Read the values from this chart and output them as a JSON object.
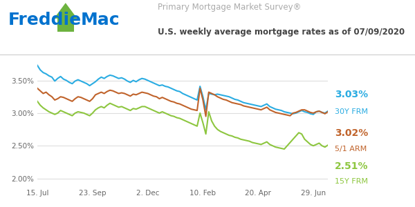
{
  "title_line1": "Primary Mortgage Market Survey®",
  "title_line2": "U.S. weekly average mortgage rates as of 07/09/2020",
  "freddie_blue": "#0072CE",
  "freddie_green": "#6DB33F",
  "bg_color": "#FFFFFF",
  "line_30y_color": "#2AACE2",
  "line_arm_color": "#C0632B",
  "line_15y_color": "#8DC63F",
  "grid_color": "#DDDDDD",
  "yticks": [
    2.0,
    2.5,
    3.0,
    3.5
  ],
  "ytick_labels": [
    "2.00%",
    "2.50%",
    "3.00%",
    "3.50%"
  ],
  "ylim": [
    1.88,
    3.78
  ],
  "xtick_labels": [
    "15. Jul",
    "23. Sep",
    "2. Dec",
    "10. Feb",
    "20. Apr",
    "29. Jun"
  ],
  "xtick_positions": [
    0,
    19,
    38,
    57,
    76,
    95
  ],
  "x": [
    0,
    1,
    2,
    3,
    4,
    5,
    6,
    7,
    8,
    9,
    10,
    11,
    12,
    13,
    14,
    15,
    16,
    17,
    18,
    19,
    20,
    21,
    22,
    23,
    24,
    25,
    26,
    27,
    28,
    29,
    30,
    31,
    32,
    33,
    34,
    35,
    36,
    37,
    38,
    39,
    40,
    41,
    42,
    43,
    44,
    45,
    46,
    47,
    48,
    49,
    50,
    51,
    52,
    53,
    54,
    55,
    56,
    57,
    58,
    59,
    60,
    61,
    62,
    63,
    64,
    65,
    66,
    67,
    68,
    69,
    70,
    71,
    72,
    73,
    74,
    75,
    76,
    77,
    78,
    79,
    80,
    81,
    82,
    83,
    84,
    85,
    86,
    87,
    88,
    89,
    90,
    91,
    92,
    93,
    94,
    95,
    96,
    97,
    98,
    99,
    100
  ],
  "y_30y": [
    3.73,
    3.66,
    3.62,
    3.6,
    3.57,
    3.55,
    3.49,
    3.53,
    3.56,
    3.52,
    3.5,
    3.47,
    3.45,
    3.49,
    3.51,
    3.49,
    3.47,
    3.45,
    3.42,
    3.45,
    3.48,
    3.52,
    3.55,
    3.53,
    3.56,
    3.58,
    3.57,
    3.55,
    3.53,
    3.54,
    3.52,
    3.49,
    3.47,
    3.5,
    3.48,
    3.51,
    3.53,
    3.52,
    3.5,
    3.48,
    3.46,
    3.44,
    3.42,
    3.43,
    3.41,
    3.4,
    3.38,
    3.36,
    3.34,
    3.33,
    3.3,
    3.28,
    3.26,
    3.24,
    3.22,
    3.2,
    3.41,
    3.25,
    3.05,
    3.3,
    3.29,
    3.28,
    3.29,
    3.28,
    3.27,
    3.26,
    3.25,
    3.23,
    3.21,
    3.2,
    3.18,
    3.16,
    3.15,
    3.14,
    3.13,
    3.12,
    3.11,
    3.1,
    3.12,
    3.14,
    3.1,
    3.08,
    3.06,
    3.05,
    3.04,
    3.02,
    3.01,
    3.0,
    2.99,
    3.0,
    3.02,
    3.04,
    3.02,
    3.01,
    2.99,
    2.98,
    3.02,
    3.03,
    3.01,
    3.0,
    3.03
  ],
  "y_arm": [
    3.38,
    3.34,
    3.3,
    3.32,
    3.28,
    3.25,
    3.2,
    3.22,
    3.25,
    3.24,
    3.22,
    3.2,
    3.18,
    3.22,
    3.25,
    3.24,
    3.22,
    3.2,
    3.18,
    3.22,
    3.28,
    3.3,
    3.32,
    3.3,
    3.33,
    3.35,
    3.34,
    3.32,
    3.3,
    3.31,
    3.3,
    3.28,
    3.26,
    3.29,
    3.28,
    3.3,
    3.32,
    3.31,
    3.3,
    3.28,
    3.26,
    3.25,
    3.22,
    3.24,
    3.22,
    3.2,
    3.18,
    3.17,
    3.15,
    3.14,
    3.12,
    3.1,
    3.08,
    3.06,
    3.05,
    3.04,
    3.38,
    3.2,
    2.95,
    3.32,
    3.3,
    3.28,
    3.25,
    3.23,
    3.21,
    3.2,
    3.18,
    3.16,
    3.15,
    3.14,
    3.13,
    3.11,
    3.1,
    3.09,
    3.08,
    3.07,
    3.06,
    3.05,
    3.07,
    3.09,
    3.05,
    3.03,
    3.01,
    3.0,
    2.99,
    2.98,
    2.97,
    2.96,
    3.0,
    3.01,
    3.03,
    3.05,
    3.05,
    3.03,
    3.01,
    3.0,
    3.02,
    3.03,
    3.01,
    2.99,
    3.02
  ],
  "y_15y": [
    3.18,
    3.12,
    3.08,
    3.05,
    3.02,
    3.0,
    2.98,
    3.0,
    3.04,
    3.02,
    3.0,
    2.98,
    2.96,
    3.0,
    3.02,
    3.01,
    3.0,
    2.98,
    2.96,
    3.0,
    3.05,
    3.08,
    3.1,
    3.08,
    3.12,
    3.15,
    3.13,
    3.11,
    3.09,
    3.1,
    3.08,
    3.06,
    3.04,
    3.07,
    3.06,
    3.08,
    3.1,
    3.1,
    3.08,
    3.06,
    3.04,
    3.02,
    3.0,
    3.02,
    3.0,
    2.98,
    2.96,
    2.95,
    2.93,
    2.92,
    2.9,
    2.88,
    2.86,
    2.84,
    2.82,
    2.8,
    3.0,
    2.85,
    2.68,
    3.02,
    2.88,
    2.8,
    2.75,
    2.72,
    2.7,
    2.68,
    2.66,
    2.65,
    2.63,
    2.62,
    2.6,
    2.59,
    2.58,
    2.57,
    2.55,
    2.54,
    2.53,
    2.52,
    2.54,
    2.56,
    2.52,
    2.5,
    2.48,
    2.47,
    2.46,
    2.45,
    2.5,
    2.55,
    2.6,
    2.65,
    2.7,
    2.68,
    2.6,
    2.56,
    2.52,
    2.5,
    2.52,
    2.54,
    2.5,
    2.48,
    2.51
  ],
  "val_30y": "3.03%",
  "lbl_30y": "30Y FRM",
  "val_arm": "3.02%",
  "lbl_arm": "5/1 ARM",
  "val_15y": "2.51%",
  "lbl_15y": "15Y FRM",
  "header_divider_color": "#CCCCCC"
}
